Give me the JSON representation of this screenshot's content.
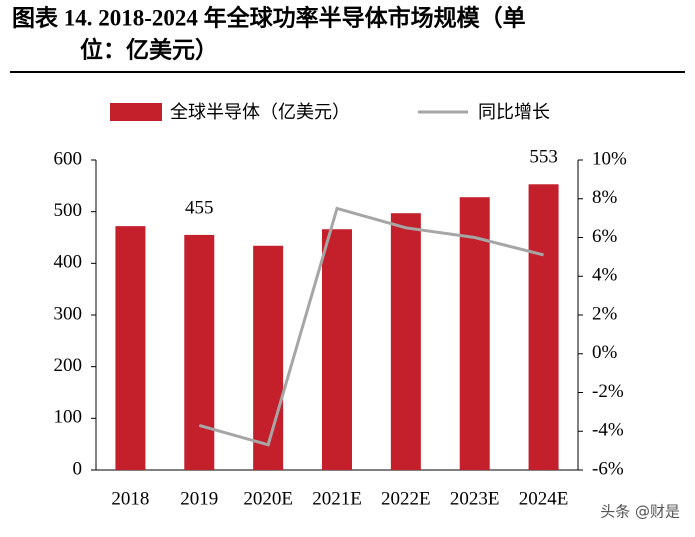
{
  "chart_data": {
    "type": "bar",
    "title": [
      "图表 14. 2018-2024 年全球功率半导体市场规模（单",
      "位：亿美元）"
    ],
    "categories": [
      "2018",
      "2019",
      "2020E",
      "2021E",
      "2022E",
      "2023E",
      "2024E"
    ],
    "series": [
      {
        "name": "全球半导体（亿美元）",
        "color": "#c3202c",
        "type": "bar",
        "values": [
          472,
          455,
          434,
          466,
          497,
          528,
          553
        ],
        "value_labels": [
          null,
          "455",
          null,
          null,
          null,
          null,
          "553"
        ]
      },
      {
        "name": "同比增长",
        "color": "#a6a6a6",
        "type": "line",
        "axis": "y2",
        "values": [
          null,
          -3.7,
          -4.7,
          7.5,
          6.5,
          6.0,
          5.1
        ]
      }
    ],
    "ylim": [
      0,
      600
    ],
    "yticks": [
      0,
      100,
      200,
      300,
      400,
      500,
      600
    ],
    "y2lim": [
      -6,
      10
    ],
    "y2ticks": [
      {
        "value": -6,
        "label": "-6%"
      },
      {
        "value": -4,
        "label": "-4%"
      },
      {
        "value": -2,
        "label": "-2%"
      },
      {
        "value": 0,
        "label": "0%"
      },
      {
        "value": 2,
        "label": "2%"
      },
      {
        "value": 4,
        "label": "4%"
      },
      {
        "value": 6,
        "label": "6%"
      },
      {
        "value": 8,
        "label": "8%"
      },
      {
        "value": 10,
        "label": "10%"
      }
    ],
    "legend": "top",
    "watermark": "头条 @财是"
  }
}
